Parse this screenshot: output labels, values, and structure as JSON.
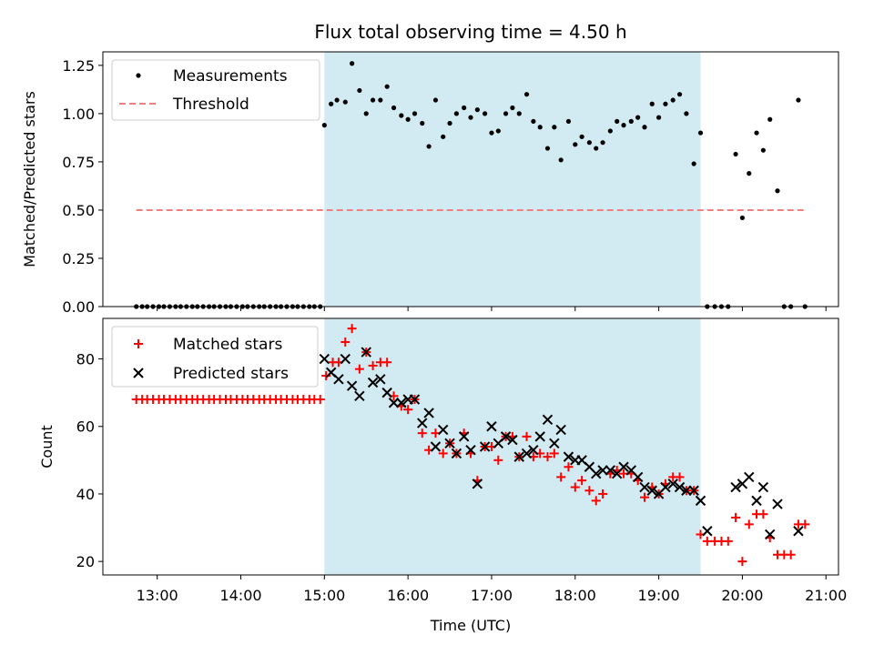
{
  "chart_data": {
    "title": "Flux total observing time = 4.50 h",
    "xlabel": "Time (UTC)",
    "x_ticks": [
      "13:00",
      "14:00",
      "15:00",
      "16:00",
      "17:00",
      "18:00",
      "19:00",
      "20:00",
      "21:00"
    ],
    "x_tick_hours": [
      13,
      14,
      15,
      16,
      17,
      18,
      19,
      20,
      21
    ],
    "xlim_hours": [
      12.35,
      21.15
    ],
    "highlight_span_hours": [
      15.0,
      19.5
    ],
    "highlight_color": "#add8e6",
    "panels": [
      {
        "name": "ratio",
        "type": "scatter",
        "ylabel": "Matched/Predicted stars",
        "ylim": [
          0,
          1.32
        ],
        "y_ticks": [
          0.0,
          0.25,
          0.5,
          0.75,
          1.0,
          1.25
        ],
        "y_tick_labels": [
          "0.00",
          "0.25",
          "0.50",
          "0.75",
          "1.00",
          "1.25"
        ],
        "legend": [
          {
            "label": "Measurements",
            "marker": "dot",
            "color": "#000000"
          },
          {
            "label": "Threshold",
            "marker": "dashed-line",
            "color": "#f08080"
          }
        ],
        "threshold": {
          "y": 0.5,
          "x_range_hours": [
            12.75,
            20.75
          ],
          "color": "#f08080"
        },
        "measurements": {
          "color": "#000000",
          "x": [
            12.75,
            12.82,
            12.88,
            12.95,
            13.02,
            13.08,
            13.15,
            13.22,
            13.28,
            13.35,
            13.42,
            13.48,
            13.55,
            13.62,
            13.68,
            13.75,
            13.82,
            13.88,
            13.95,
            14.02,
            14.08,
            14.15,
            14.22,
            14.28,
            14.35,
            14.42,
            14.48,
            14.55,
            14.62,
            14.68,
            14.75,
            14.82,
            14.88,
            14.95,
            15.0,
            15.08,
            15.15,
            15.25,
            15.33,
            15.42,
            15.5,
            15.58,
            15.67,
            15.75,
            15.83,
            15.92,
            16.0,
            16.08,
            16.17,
            16.25,
            16.33,
            16.42,
            16.5,
            16.58,
            16.67,
            16.75,
            16.83,
            16.92,
            17.0,
            17.08,
            17.17,
            17.25,
            17.33,
            17.42,
            17.5,
            17.58,
            17.67,
            17.75,
            17.83,
            17.92,
            18.0,
            18.08,
            18.17,
            18.25,
            18.33,
            18.42,
            18.5,
            18.58,
            18.67,
            18.75,
            18.83,
            18.92,
            19.0,
            19.08,
            19.17,
            19.25,
            19.33,
            19.42,
            19.5,
            19.58,
            19.67,
            19.75,
            19.83,
            19.92,
            20.0,
            20.08,
            20.17,
            20.25,
            20.33,
            20.42,
            20.5,
            20.58,
            20.67,
            20.75
          ],
          "y": [
            0,
            0,
            0,
            0,
            0,
            0,
            0,
            0,
            0,
            0,
            0,
            0,
            0,
            0,
            0,
            0,
            0,
            0,
            0,
            0,
            0,
            0,
            0,
            0,
            0,
            0,
            0,
            0,
            0,
            0,
            0,
            0,
            0,
            0,
            0.94,
            1.05,
            1.07,
            1.06,
            1.26,
            1.12,
            1.0,
            1.07,
            1.07,
            1.14,
            1.03,
            0.99,
            0.97,
            1.0,
            0.95,
            0.83,
            1.07,
            0.88,
            0.95,
            1.0,
            1.03,
            0.98,
            1.02,
            1.0,
            0.9,
            0.91,
            1.0,
            1.03,
            1.0,
            1.1,
            0.96,
            0.93,
            0.82,
            0.93,
            0.76,
            0.96,
            0.84,
            0.88,
            0.85,
            0.82,
            0.85,
            0.91,
            0.96,
            0.94,
            0.96,
            0.98,
            0.93,
            1.05,
            0.98,
            1.05,
            1.07,
            1.1,
            1.0,
            0.74,
            0.9,
            0,
            0,
            0,
            0,
            0.79,
            0.46,
            0.69,
            0.9,
            0.81,
            0.97,
            0.6,
            0,
            0,
            1.07,
            0
          ]
        }
      },
      {
        "name": "count",
        "type": "scatter",
        "ylabel": "Count",
        "ylim": [
          16,
          92
        ],
        "y_ticks": [
          20,
          40,
          60,
          80
        ],
        "y_tick_labels": [
          "20",
          "40",
          "60",
          "80"
        ],
        "legend": [
          {
            "label": "Matched stars",
            "marker": "plus",
            "color": "#ff0000"
          },
          {
            "label": "Predicted stars",
            "marker": "x",
            "color": "#000000"
          }
        ],
        "matched_stars": {
          "color": "#ff0000",
          "x": [
            12.75,
            12.82,
            12.88,
            12.95,
            13.02,
            13.08,
            13.15,
            13.22,
            13.28,
            13.35,
            13.42,
            13.48,
            13.55,
            13.62,
            13.68,
            13.75,
            13.82,
            13.88,
            13.95,
            14.02,
            14.08,
            14.15,
            14.22,
            14.28,
            14.35,
            14.42,
            14.48,
            14.55,
            14.62,
            14.68,
            14.75,
            14.82,
            14.88,
            14.95,
            15.02,
            15.1,
            15.17,
            15.25,
            15.33,
            15.42,
            15.5,
            15.58,
            15.67,
            15.75,
            15.83,
            15.92,
            16.0,
            16.08,
            16.17,
            16.25,
            16.33,
            16.42,
            16.5,
            16.58,
            16.67,
            16.75,
            16.83,
            16.92,
            17.0,
            17.08,
            17.17,
            17.25,
            17.33,
            17.42,
            17.5,
            17.58,
            17.67,
            17.75,
            17.83,
            17.92,
            18.0,
            18.08,
            18.17,
            18.25,
            18.33,
            18.42,
            18.5,
            18.58,
            18.67,
            18.75,
            18.83,
            18.92,
            19.0,
            19.08,
            19.17,
            19.25,
            19.33,
            19.42,
            19.5,
            19.58,
            19.67,
            19.75,
            19.83,
            19.92,
            20.0,
            20.08,
            20.17,
            20.25,
            20.33,
            20.42,
            20.5,
            20.58,
            20.67,
            20.75
          ],
          "y": [
            68,
            68,
            68,
            68,
            68,
            68,
            68,
            68,
            68,
            68,
            68,
            68,
            68,
            68,
            68,
            68,
            68,
            68,
            68,
            68,
            68,
            68,
            68,
            68,
            68,
            68,
            68,
            68,
            68,
            68,
            68,
            68,
            68,
            68,
            75,
            79,
            79,
            85,
            89,
            77,
            82,
            78,
            79,
            79,
            69,
            66,
            65,
            68,
            58,
            53,
            58,
            52,
            55,
            52,
            58,
            52,
            44,
            54,
            54,
            50,
            57,
            57,
            51,
            57,
            51,
            52,
            51,
            52,
            45,
            48,
            42,
            44,
            41,
            38,
            40,
            46,
            47,
            46,
            46,
            44,
            39,
            42,
            40,
            43,
            45,
            45,
            41,
            41,
            28,
            26,
            26,
            26,
            26,
            33,
            20,
            31,
            34,
            34,
            27,
            22,
            22,
            22,
            31,
            31
          ]
        },
        "predicted_stars": {
          "color": "#000000",
          "x": [
            15.0,
            15.08,
            15.17,
            15.25,
            15.33,
            15.42,
            15.5,
            15.58,
            15.67,
            15.75,
            15.83,
            15.92,
            16.0,
            16.08,
            16.17,
            16.25,
            16.33,
            16.42,
            16.5,
            16.58,
            16.67,
            16.75,
            16.83,
            16.92,
            17.0,
            17.08,
            17.17,
            17.25,
            17.33,
            17.42,
            17.5,
            17.58,
            17.67,
            17.75,
            17.83,
            17.92,
            18.0,
            18.08,
            18.17,
            18.25,
            18.33,
            18.42,
            18.5,
            18.58,
            18.67,
            18.75,
            18.83,
            18.92,
            19.0,
            19.08,
            19.17,
            19.25,
            19.33,
            19.42,
            19.5,
            19.58,
            19.92,
            20.0,
            20.08,
            20.17,
            20.25,
            20.33,
            20.42,
            20.67
          ],
          "y": [
            80,
            76,
            74,
            80,
            72,
            69,
            82,
            73,
            74,
            70,
            67,
            67,
            68,
            68,
            61,
            64,
            54,
            59,
            55,
            52,
            57,
            53,
            43,
            54,
            60,
            55,
            57,
            56,
            51,
            52,
            53,
            57,
            62,
            55,
            59,
            51,
            50,
            50,
            48,
            46,
            47,
            47,
            46,
            48,
            47,
            45,
            42,
            41,
            40,
            42,
            43,
            42,
            41,
            41,
            38,
            29,
            42,
            43,
            45,
            38,
            42,
            28,
            37,
            29
          ]
        }
      }
    ]
  }
}
